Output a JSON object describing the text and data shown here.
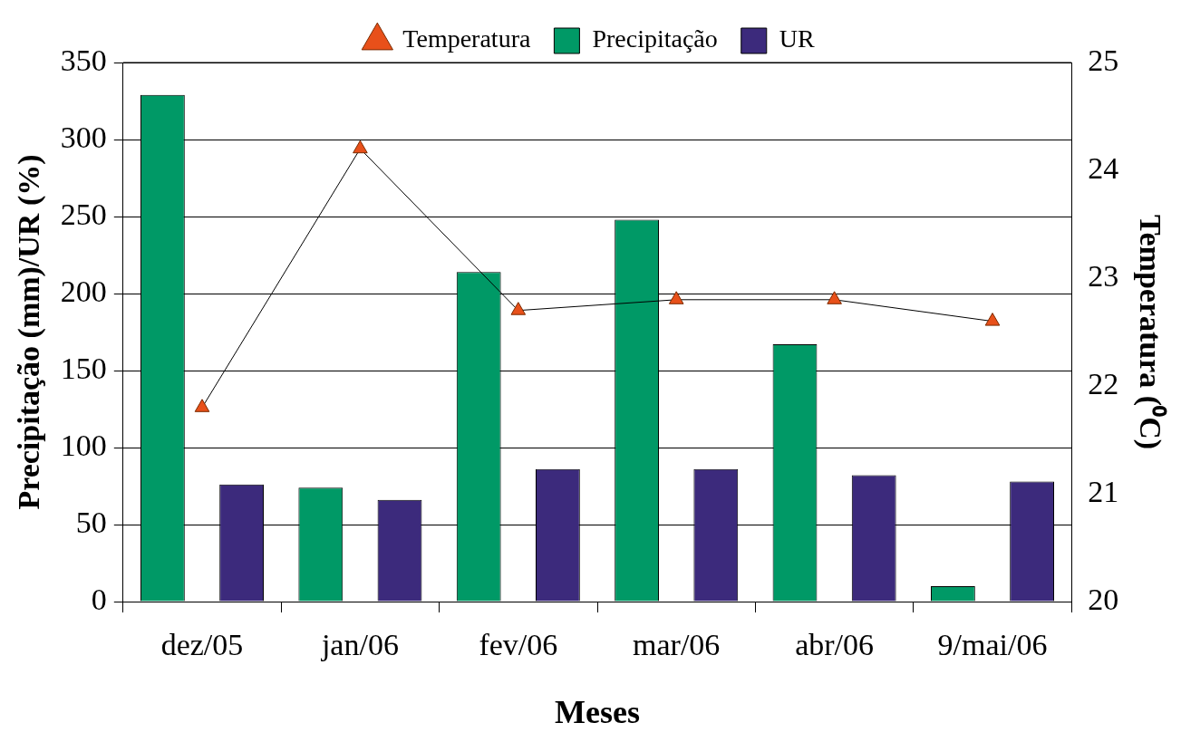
{
  "chart_data": {
    "type": "bar",
    "xlabel": "Meses",
    "ylabel": "Precipitação (mm)/UR (%)",
    "y2label": "Temperatura (⁰C)",
    "categories": [
      "dez/05",
      "jan/06",
      "fev/06",
      "mar/06",
      "abr/06",
      "9/mai/06"
    ],
    "series": [
      {
        "name": "Precipitação",
        "color": "#009966",
        "values": [
          329,
          74,
          214,
          248,
          167,
          10
        ]
      },
      {
        "name": "UR",
        "color": "#3c2a7c",
        "values": [
          76,
          66,
          86,
          86,
          82,
          78
        ]
      },
      {
        "name": "Temperatura",
        "type": "line",
        "axis": "y2",
        "color": "#e8501a",
        "values": [
          21.8,
          24.2,
          22.7,
          22.8,
          22.8,
          22.6
        ]
      }
    ],
    "ylim": [
      0,
      350
    ],
    "yticks": [
      0,
      50,
      100,
      150,
      200,
      250,
      300,
      350
    ],
    "y2lim": [
      20,
      25
    ],
    "y2ticks": [
      20,
      21,
      22,
      23,
      24,
      25
    ],
    "grid": "y",
    "legend": "top",
    "marker": "triangle",
    "line_style": "solid"
  }
}
